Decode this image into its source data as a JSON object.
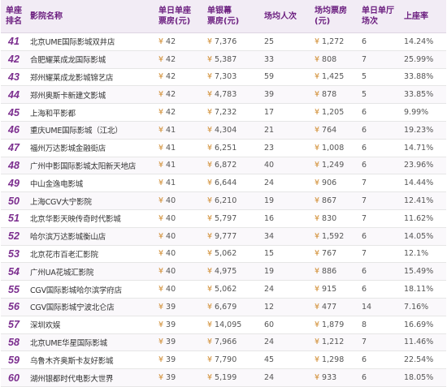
{
  "headers": {
    "rank": "单座排名",
    "rank_line1": "单座",
    "rank_line2": "排名",
    "name": "影院名称",
    "seat_box_line1": "单日单座",
    "seat_box_line2": "票房(元)",
    "screen_box_line1": "单银幕",
    "screen_box_line2": "票房(元)",
    "audience": "场均人次",
    "avg_box": "场均票房(元)",
    "hall_shows_line1": "单日单厅",
    "hall_shows_line2": "场次",
    "occupancy": "上座率"
  },
  "currency_symbol": "¥",
  "rows": [
    {
      "rank": "41",
      "name": "北京UME国际影城双井店",
      "seat_box": "42",
      "screen_box": "7,376",
      "audience": "25",
      "avg_box": "1,272",
      "hall_shows": "6",
      "occupancy": "14.24%"
    },
    {
      "rank": "42",
      "name": "合肥耀莱成龙国际影城",
      "seat_box": "42",
      "screen_box": "5,387",
      "audience": "33",
      "avg_box": "808",
      "hall_shows": "7",
      "occupancy": "25.99%"
    },
    {
      "rank": "43",
      "name": "郑州耀莱成龙影城锦艺店",
      "seat_box": "42",
      "screen_box": "7,303",
      "audience": "59",
      "avg_box": "1,425",
      "hall_shows": "5",
      "occupancy": "33.88%"
    },
    {
      "rank": "44",
      "name": "郑州奥斯卡新建文影城",
      "seat_box": "42",
      "screen_box": "4,783",
      "audience": "39",
      "avg_box": "878",
      "hall_shows": "5",
      "occupancy": "33.85%"
    },
    {
      "rank": "45",
      "name": "上海和平影都",
      "seat_box": "42",
      "screen_box": "7,232",
      "audience": "17",
      "avg_box": "1,205",
      "hall_shows": "6",
      "occupancy": "9.99%"
    },
    {
      "rank": "46",
      "name": "重庆UME国际影城（江北）",
      "seat_box": "41",
      "screen_box": "4,304",
      "audience": "21",
      "avg_box": "764",
      "hall_shows": "6",
      "occupancy": "19.23%"
    },
    {
      "rank": "47",
      "name": "福州万达影城金融街店",
      "seat_box": "41",
      "screen_box": "6,251",
      "audience": "23",
      "avg_box": "1,008",
      "hall_shows": "6",
      "occupancy": "14.71%"
    },
    {
      "rank": "48",
      "name": "广州中影国际影城太阳新天地店",
      "seat_box": "41",
      "screen_box": "6,872",
      "audience": "40",
      "avg_box": "1,249",
      "hall_shows": "6",
      "occupancy": "23.96%"
    },
    {
      "rank": "49",
      "name": "中山金逸电影城",
      "seat_box": "41",
      "screen_box": "6,644",
      "audience": "24",
      "avg_box": "906",
      "hall_shows": "7",
      "occupancy": "14.44%"
    },
    {
      "rank": "50",
      "name": "上海CGV大宁影院",
      "seat_box": "40",
      "screen_box": "6,210",
      "audience": "19",
      "avg_box": "867",
      "hall_shows": "7",
      "occupancy": "12.41%"
    },
    {
      "rank": "51",
      "name": "北京华影天映传奇时代影城",
      "seat_box": "40",
      "screen_box": "5,797",
      "audience": "16",
      "avg_box": "830",
      "hall_shows": "7",
      "occupancy": "11.62%"
    },
    {
      "rank": "52",
      "name": "哈尔滨万达影城衡山店",
      "seat_box": "40",
      "screen_box": "9,777",
      "audience": "34",
      "avg_box": "1,592",
      "hall_shows": "6",
      "occupancy": "14.05%"
    },
    {
      "rank": "53",
      "name": "北京花市百老汇影院",
      "seat_box": "40",
      "screen_box": "5,062",
      "audience": "15",
      "avg_box": "767",
      "hall_shows": "7",
      "occupancy": "12.1%"
    },
    {
      "rank": "54",
      "name": "广州UA花城汇影院",
      "seat_box": "40",
      "screen_box": "4,975",
      "audience": "19",
      "avg_box": "886",
      "hall_shows": "6",
      "occupancy": "15.49%"
    },
    {
      "rank": "55",
      "name": "CGV国际影城哈尔滨学府店",
      "seat_box": "40",
      "screen_box": "5,062",
      "audience": "24",
      "avg_box": "915",
      "hall_shows": "6",
      "occupancy": "18.11%"
    },
    {
      "rank": "56",
      "name": "CGV国际影城宁波北仑店",
      "seat_box": "39",
      "screen_box": "6,679",
      "audience": "12",
      "avg_box": "477",
      "hall_shows": "14",
      "occupancy": "7.16%"
    },
    {
      "rank": "57",
      "name": "深圳欢娱",
      "seat_box": "39",
      "screen_box": "14,095",
      "audience": "60",
      "avg_box": "1,879",
      "hall_shows": "8",
      "occupancy": "16.69%"
    },
    {
      "rank": "58",
      "name": "北京UME华星国际影城",
      "seat_box": "39",
      "screen_box": "7,966",
      "audience": "24",
      "avg_box": "1,212",
      "hall_shows": "7",
      "occupancy": "11.46%"
    },
    {
      "rank": "59",
      "name": "乌鲁木齐奥斯卡友好影城",
      "seat_box": "39",
      "screen_box": "7,790",
      "audience": "45",
      "avg_box": "1,298",
      "hall_shows": "6",
      "occupancy": "22.54%"
    },
    {
      "rank": "60",
      "name": "湖州银都时代电影大世界",
      "seat_box": "39",
      "screen_box": "5,199",
      "audience": "24",
      "avg_box": "933",
      "hall_shows": "6",
      "occupancy": "18.05%"
    }
  ]
}
